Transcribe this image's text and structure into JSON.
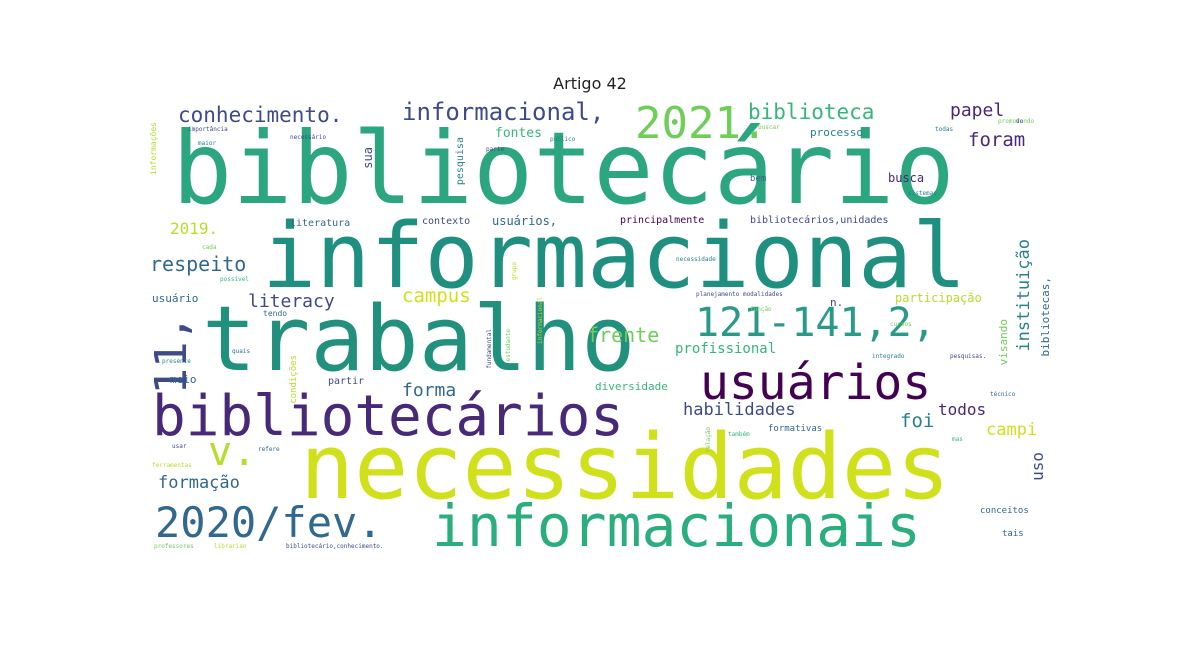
{
  "title": "Artigo 42",
  "cloud": {
    "words": {
      "bibliotecario": "bibliotecário",
      "informacional_big": "informacional",
      "trabalho": "trabalho",
      "necessidades": "necessidades",
      "bibliotecarios": "bibliotecários",
      "informacionais": "informacionais",
      "usuarios_big": "usuários",
      "y2020fev": "2020/fev.",
      "p121": "121-141,2,",
      "y2021": "2021.",
      "n11": "11,",
      "v": "v.",
      "conhecimento": "conhecimento.",
      "informacional_mid": "informacional,",
      "biblioteca": "biblioteca",
      "papel": "papel",
      "foram": "foram",
      "respeito": "respeito",
      "literacy": "literacy",
      "campus": "campus",
      "frente": "frente",
      "forma": "forma",
      "habilidades": "habilidades",
      "foi": "foi",
      "todos": "todos",
      "campi": "campi",
      "formacao": "formação",
      "profissional": "profissional",
      "instituicao": "instituição",
      "uso": "uso",
      "y2019": "2019.",
      "fontes": "fontes",
      "processo": "processo",
      "busca": "busca",
      "usuarios_small": "usuários,",
      "literatura": "literatura",
      "contexto": "contexto",
      "principalmente": "principalmente",
      "bib_unidades": "bibliotecários,unidades",
      "sua": "sua",
      "pesquisa": "pesquisa",
      "usuario": "usuário",
      "meio": "meio",
      "partir": "partir",
      "diversidade": "diversidade",
      "participacao": "participação",
      "visando": "visando",
      "bibliotecas": "bibliotecas,",
      "formativas": "formativas",
      "conceitos": "conceitos",
      "tais": "tais",
      "informacoes": "informações",
      "tendo": "tendo",
      "condicoes": "condições",
      "bem": "bem",
      "n": "n.",
      "importancia": "importância",
      "maior": "maior",
      "necessario": "necessário",
      "parte": "parte",
      "publico": "público",
      "sistemas": "sistemas",
      "cada": "cada",
      "possivel": "possível",
      "necessidade": "necessidade",
      "planejamento": "planejamento modalidades",
      "presente": "presente",
      "quais": "quais",
      "qual": "qual",
      "refere": "refere",
      "usar": "usar",
      "ferramentas": "ferramentas",
      "professores": "professores",
      "librarian": "librarian",
      "bib_conhecimento": "bibliotecário,conhecimento.",
      "relacao": "relação",
      "tambem": "também",
      "funcao": "função",
      "integrado": "integrado",
      "pesquisas": "pesquisas.",
      "cursos": "cursos",
      "tecnico": "técnico",
      "mas": "mas",
      "buscar": "buscar",
      "todas": "todas",
      "promovendo": "promovendo",
      "do": "do",
      "fundamental": "fundamental",
      "estudante": "estudante",
      "informacional_v": "informacional",
      "grupo": "grupo"
    },
    "palette": {
      "dark_purple": "#440154",
      "purple": "#482878",
      "indigo": "#3e4a89",
      "blue": "#31688e",
      "teal_blue": "#26828e",
      "teal": "#1f9e89",
      "green": "#35b779",
      "light_green": "#6ece58",
      "lime": "#b5de2b",
      "yellow": "#d0e11c"
    }
  }
}
